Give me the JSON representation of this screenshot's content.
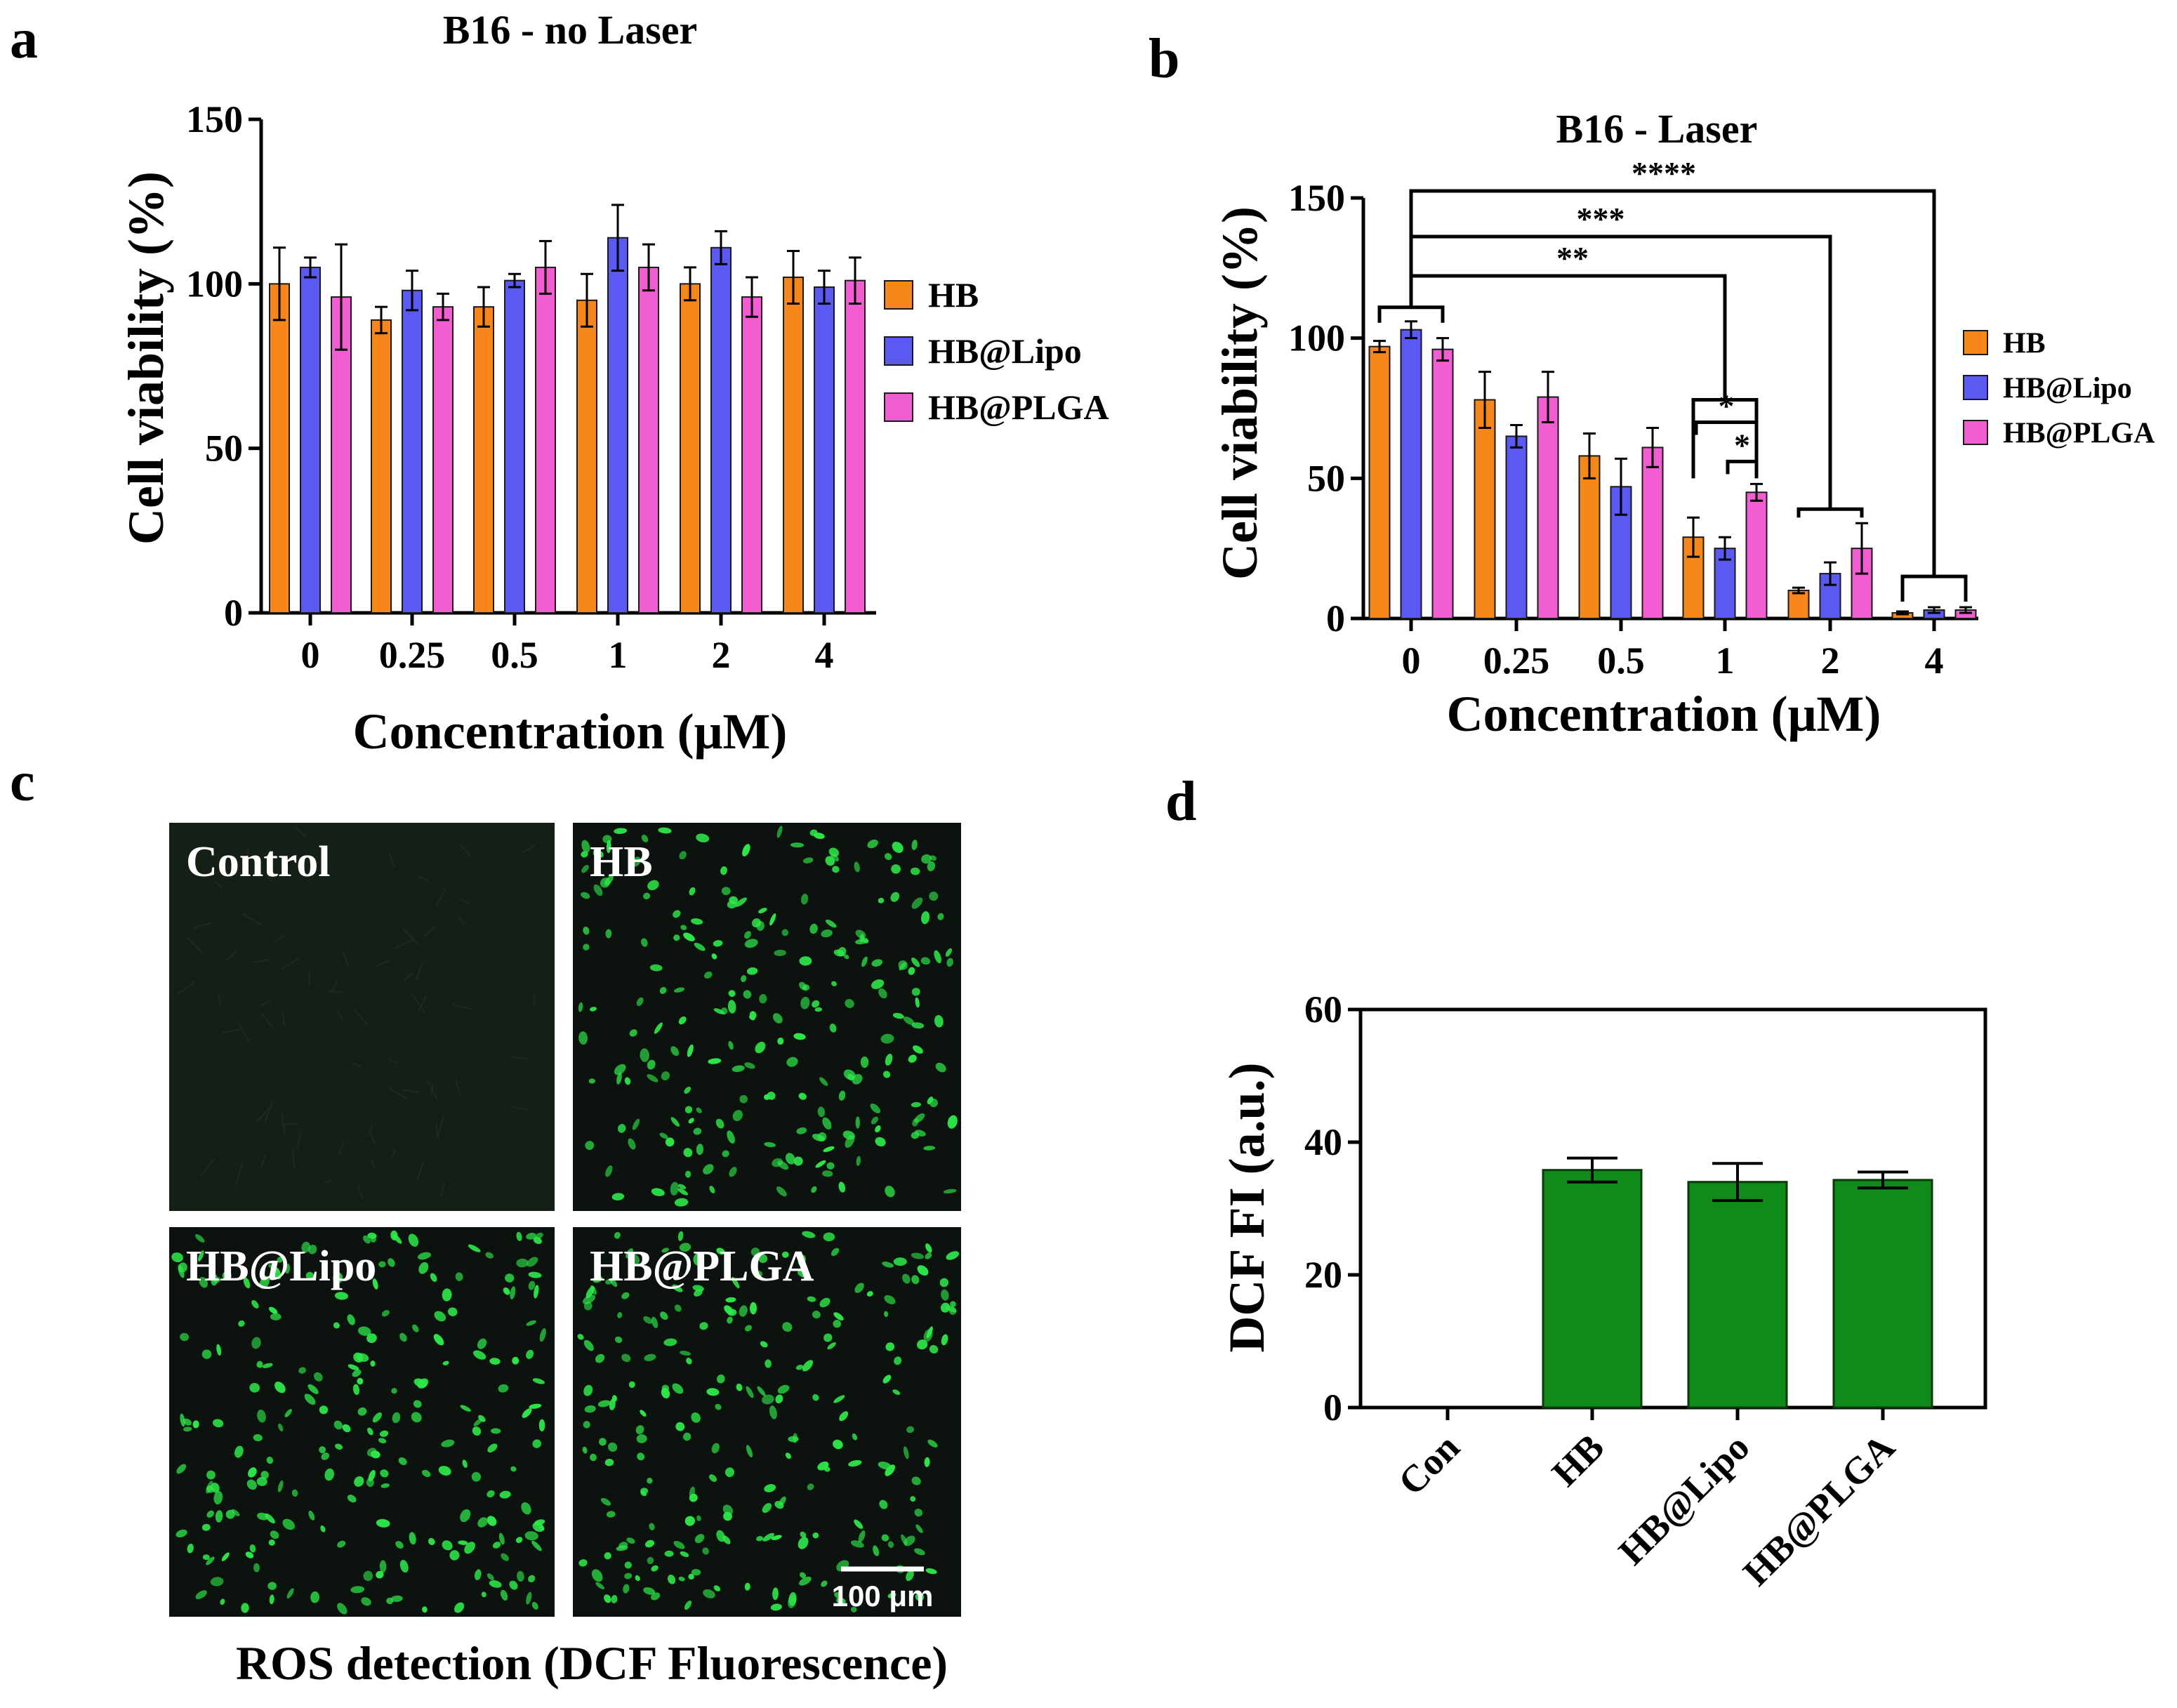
{
  "colors": {
    "HB": "#f7861b",
    "HB@Lipo": "#5a5af2",
    "HB@PLGA": "#f35dd2",
    "green_bar": "#0f8a1b",
    "micro_cell": "#2ee84a",
    "micro_bg": "#101611"
  },
  "panel_labels": {
    "a": "a",
    "b": "b",
    "c": "c",
    "d": "d"
  },
  "chart_data": [
    {
      "id": "a",
      "type": "bar",
      "title": "B16 -  no Laser",
      "xlabel": "Concentration (μM)",
      "ylabel": "Cell viability (%)",
      "ylim": [
        0,
        150
      ],
      "yticks": [
        0,
        50,
        100,
        150
      ],
      "categories": [
        "0",
        "0.25",
        "0.5",
        "1",
        "2",
        "4"
      ],
      "series": [
        {
          "name": "HB",
          "color_key": "HB",
          "values": [
            100,
            89,
            93,
            95,
            100,
            102
          ],
          "errors": [
            11,
            4,
            6,
            8,
            5,
            8
          ]
        },
        {
          "name": "HB@Lipo",
          "color_key": "HB@Lipo",
          "values": [
            105,
            98,
            101,
            114,
            111,
            99
          ],
          "errors": [
            3,
            6,
            2,
            10,
            5,
            5
          ]
        },
        {
          "name": "HB@PLGA",
          "color_key": "HB@PLGA",
          "values": [
            96,
            93,
            105,
            105,
            96,
            101
          ],
          "errors": [
            16,
            4,
            8,
            7,
            6,
            7
          ]
        }
      ],
      "legend": [
        "HB",
        "HB@Lipo",
        "HB@PLGA"
      ],
      "legend_position": "right"
    },
    {
      "id": "b",
      "type": "bar",
      "title": "B16 -  Laser",
      "xlabel": "Concentration (μM)",
      "ylabel": "Cell viability (%)",
      "ylim": [
        0,
        150
      ],
      "yticks": [
        0,
        50,
        100,
        150
      ],
      "categories": [
        "0",
        "0.25",
        "0.5",
        "1",
        "2",
        "4"
      ],
      "series": [
        {
          "name": "HB",
          "color_key": "HB",
          "values": [
            97,
            78,
            58,
            29,
            10,
            2
          ],
          "errors": [
            2,
            10,
            8,
            7,
            1,
            0.5
          ]
        },
        {
          "name": "HB@Lipo",
          "color_key": "HB@Lipo",
          "values": [
            103,
            65,
            47,
            25,
            16,
            3
          ],
          "errors": [
            3,
            4,
            10,
            4,
            4,
            1
          ]
        },
        {
          "name": "HB@PLGA",
          "color_key": "HB@PLGA",
          "values": [
            96,
            79,
            61,
            45,
            25,
            3
          ],
          "errors": [
            4,
            9,
            7,
            3,
            9,
            1
          ]
        }
      ],
      "legend": [
        "HB",
        "HB@Lipo",
        "HB@PLGA"
      ],
      "legend_position": "right",
      "significance": [
        {
          "label": "****",
          "from": "0",
          "to": "4",
          "level": 1
        },
        {
          "label": "***",
          "from": "0",
          "to": "2",
          "level": 2
        },
        {
          "label": "**",
          "from": "0",
          "to": "1",
          "level": 3
        },
        {
          "label": "*",
          "within": "1",
          "from": "HB",
          "to": "HB@PLGA"
        },
        {
          "label": "*",
          "within": "1",
          "from": "HB@Lipo",
          "to": "HB@PLGA"
        }
      ]
    },
    {
      "id": "d",
      "type": "bar",
      "title": "",
      "xlabel": "",
      "ylabel": "DCF FI (a.u.)",
      "ylim": [
        0,
        60
      ],
      "yticks": [
        0,
        20,
        40,
        60
      ],
      "categories": [
        "Con",
        "HB",
        "HB@Lipo",
        "HB@PLGA"
      ],
      "values": [
        0,
        35.8,
        34,
        34.3
      ],
      "errors": [
        0,
        1.8,
        2.8,
        1.2
      ]
    }
  ],
  "microscopy": {
    "panels": [
      {
        "label": "Control",
        "fluorescent": false
      },
      {
        "label": "HB",
        "fluorescent": true
      },
      {
        "label": "HB@Lipo",
        "fluorescent": true
      },
      {
        "label": "HB@PLGA",
        "fluorescent": true
      }
    ],
    "scale_bar": "100 μm",
    "caption": "ROS detection (DCF Fluorescence)"
  }
}
